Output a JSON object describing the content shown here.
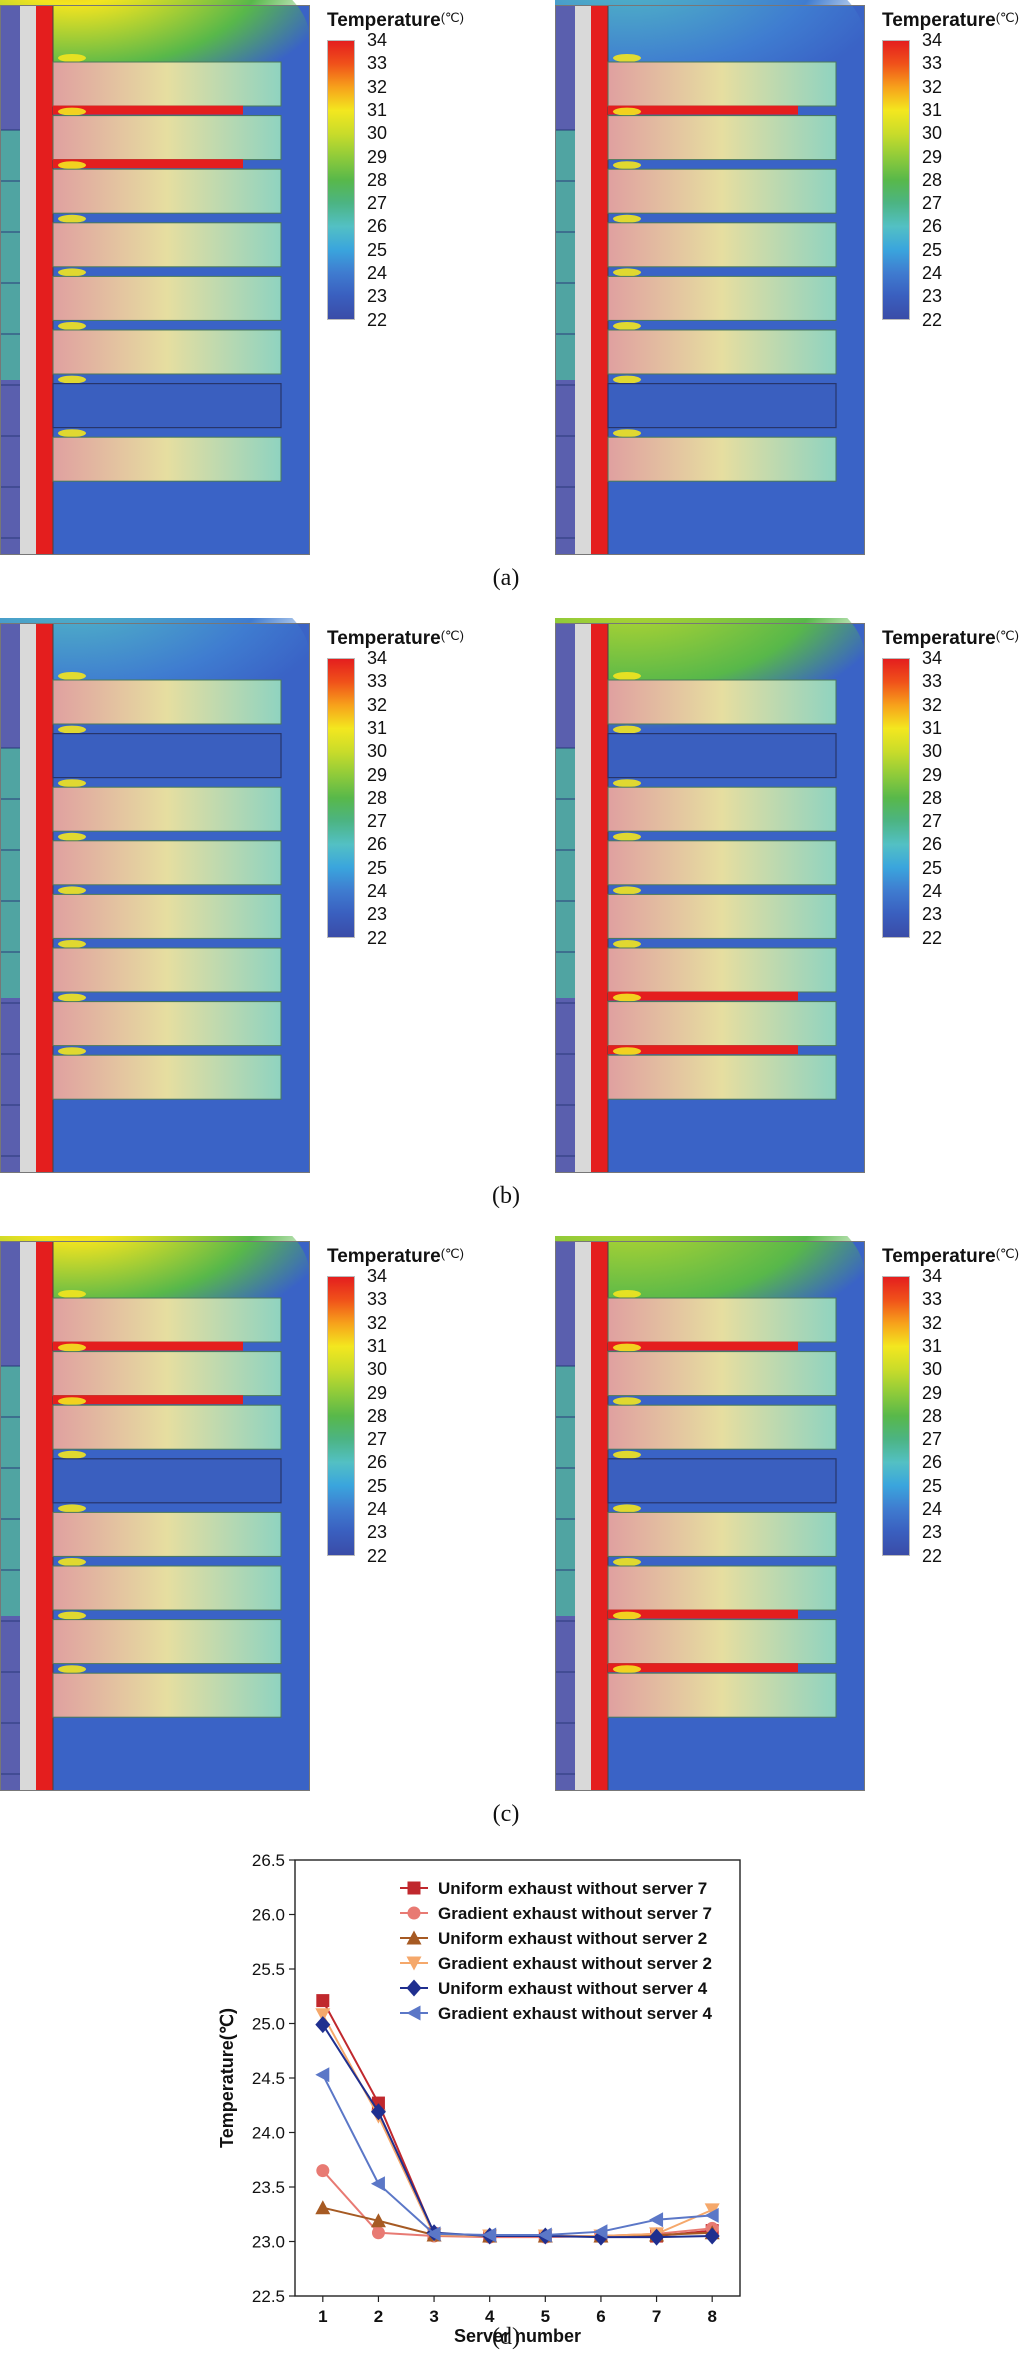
{
  "colorbar": {
    "title": "Temperature",
    "unit": "(℃)",
    "ticks": [
      "34",
      "33",
      "32",
      "31",
      "30",
      "29",
      "28",
      "27",
      "26",
      "25",
      "24",
      "23",
      "22"
    ],
    "colors": [
      "#e41e1e",
      "#f0521a",
      "#f7a21b",
      "#f3e71f",
      "#c9dc2a",
      "#8fcb3a",
      "#58b84a",
      "#4cb483",
      "#53c0c4",
      "#3aa5dd",
      "#3f7cd0",
      "#3a5fbf",
      "#3a4ca8"
    ]
  },
  "panels": [
    {
      "label": "(a)",
      "sims": [
        {
          "name": "uniform-exhaust-without-server-7",
          "blank_server": 7,
          "hot_rows": [
            1,
            2
          ],
          "top_plume": "hot"
        },
        {
          "name": "gradient-exhaust-without-server-7",
          "blank_server": 7,
          "hot_rows": [
            1
          ],
          "top_plume": "cool"
        }
      ]
    },
    {
      "label": "(b)",
      "sims": [
        {
          "name": "uniform-exhaust-without-server-2",
          "blank_server": 2,
          "hot_rows": [],
          "top_plume": "cool"
        },
        {
          "name": "gradient-exhaust-without-server-2",
          "blank_server": 2,
          "hot_rows": [
            6,
            7
          ],
          "top_plume": "warm"
        }
      ]
    },
    {
      "label": "(c)",
      "sims": [
        {
          "name": "uniform-exhaust-without-server-4",
          "blank_server": 4,
          "hot_rows": [
            1,
            2
          ],
          "top_plume": "hot"
        },
        {
          "name": "gradient-exhaust-without-server-4",
          "blank_server": 4,
          "hot_rows": [
            1,
            6,
            7
          ],
          "top_plume": "warm"
        }
      ]
    }
  ],
  "chart_data": {
    "type": "line",
    "label": "(d)",
    "title": "",
    "xlabel": "Server number",
    "ylabel": "Temperature(℃)",
    "x": [
      1,
      2,
      3,
      4,
      5,
      6,
      7,
      8
    ],
    "xlim": [
      0.5,
      8.5
    ],
    "ylim": [
      22.5,
      26.5
    ],
    "yticks": [
      "22.5",
      "23.0",
      "23.5",
      "24.0",
      "24.5",
      "25.0",
      "25.5",
      "26.0",
      "26.5"
    ],
    "xticks": [
      "1",
      "2",
      "3",
      "4",
      "5",
      "6",
      "7",
      "8"
    ],
    "legend_position": "top-right",
    "series": [
      {
        "name": "Uniform exhaust  without server 7",
        "color": "#c0282d",
        "marker": "square",
        "values": [
          25.21,
          24.27,
          23.07,
          23.05,
          23.05,
          23.05,
          23.05,
          23.1
        ]
      },
      {
        "name": "Gradient exhaust without server 7",
        "color": "#e87a73",
        "marker": "circle",
        "values": [
          23.65,
          23.08,
          23.05,
          23.04,
          23.04,
          23.05,
          23.07,
          23.12
        ]
      },
      {
        "name": "Uniform exhaust  without server 2",
        "color": "#a65a23",
        "marker": "triangle-up",
        "values": [
          23.31,
          23.19,
          23.06,
          23.05,
          23.05,
          23.05,
          23.06,
          23.08
        ]
      },
      {
        "name": "Gradient exhaust without server 2",
        "color": "#f5a86b",
        "marker": "triangle-down",
        "values": [
          25.08,
          24.15,
          23.06,
          23.05,
          23.05,
          23.05,
          23.07,
          23.29
        ]
      },
      {
        "name": "Uniform exhaust  without server 4",
        "color": "#1f2f8f",
        "marker": "diamond",
        "values": [
          24.99,
          24.19,
          23.08,
          23.05,
          23.05,
          23.04,
          23.04,
          23.05
        ]
      },
      {
        "name": "Gradient exhaust without server 4",
        "color": "#5b77c7",
        "marker": "triangle-left",
        "values": [
          24.53,
          23.53,
          23.07,
          23.06,
          23.06,
          23.09,
          23.2,
          23.24
        ]
      }
    ]
  }
}
